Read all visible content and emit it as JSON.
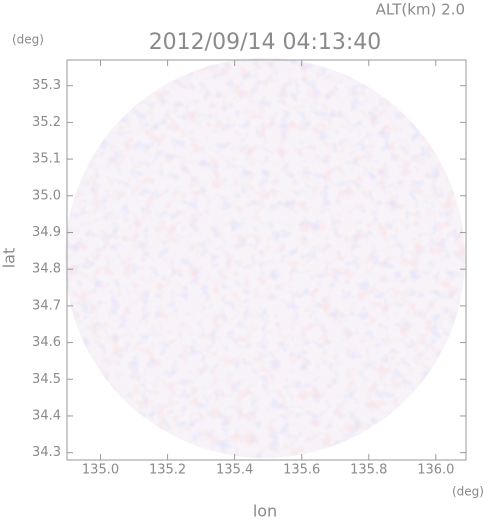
{
  "chart_data": {
    "type": "map",
    "title": "2012/09/14 04:13:40",
    "subtitle": "ALT(km) 2.0",
    "x_label": "lon",
    "y_label": "lat",
    "x_unit": "(deg)",
    "y_unit": "(deg)",
    "xlim": [
      134.9,
      136.09
    ],
    "xticks": [
      {
        "value": 135,
        "label": "135.0"
      },
      135.2,
      135.4,
      135.6,
      135.8,
      {
        "value": 136,
        "label": "136.0"
      }
    ],
    "ylim": [
      34.28,
      35.37
    ],
    "yticks": [
      34.3,
      34.4,
      34.5,
      34.6,
      34.7,
      34.8,
      34.9,
      {
        "value": 35,
        "label": "35.0"
      },
      35.1,
      35.2,
      35.3
    ]
  }
}
